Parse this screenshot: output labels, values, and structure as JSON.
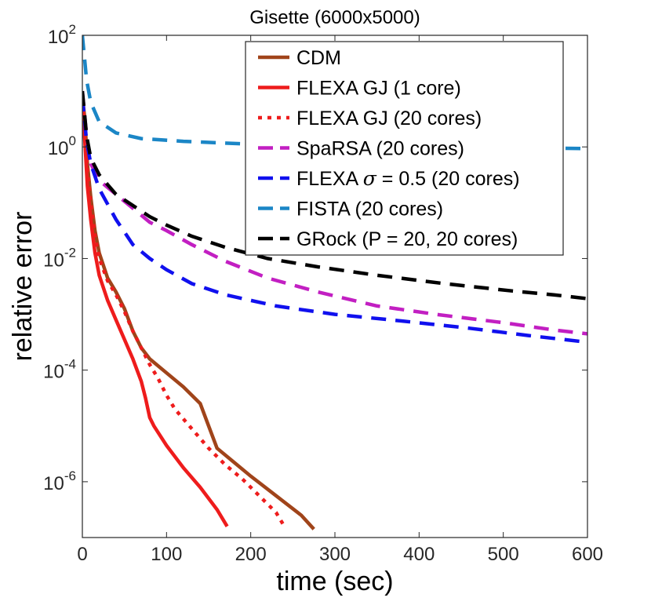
{
  "chart_data": {
    "type": "line",
    "title": "Gisette (6000x5000)",
    "xlabel": "time (sec)",
    "ylabel": "relative error",
    "xlim": [
      0,
      600
    ],
    "ylim_log10": [
      -7,
      2
    ],
    "y_scale": "log",
    "x_ticks": [
      {
        "value": 0,
        "label": "0"
      },
      {
        "value": 100,
        "label": "100"
      },
      {
        "value": 200,
        "label": "200"
      },
      {
        "value": 300,
        "label": "300"
      },
      {
        "value": 400,
        "label": "400"
      },
      {
        "value": 500,
        "label": "500"
      },
      {
        "value": 600,
        "label": "600"
      }
    ],
    "y_ticks": [
      {
        "exp": 2,
        "base": "10",
        "sup": "2"
      },
      {
        "exp": 0,
        "base": "10",
        "sup": "0"
      },
      {
        "exp": -2,
        "base": "10",
        "sup": "-2"
      },
      {
        "exp": -4,
        "base": "10",
        "sup": "-4"
      },
      {
        "exp": -6,
        "base": "10",
        "sup": "-6"
      }
    ],
    "legend_position": "top-right",
    "series": [
      {
        "key": "cdm",
        "name": "CDM",
        "color": "#a0441a",
        "dash": "solid",
        "points": [
          [
            0,
            0.9
          ],
          [
            3,
            0.5
          ],
          [
            6,
            -0.3
          ],
          [
            10,
            -0.9
          ],
          [
            15,
            -1.5
          ],
          [
            20,
            -1.9
          ],
          [
            30,
            -2.35
          ],
          [
            40,
            -2.6
          ],
          [
            50,
            -2.9
          ],
          [
            60,
            -3.3
          ],
          [
            70,
            -3.6
          ],
          [
            80,
            -3.8
          ],
          [
            100,
            -4.05
          ],
          [
            120,
            -4.3
          ],
          [
            140,
            -4.6
          ],
          [
            150,
            -5.0
          ],
          [
            160,
            -5.4
          ],
          [
            180,
            -5.65
          ],
          [
            200,
            -5.9
          ],
          [
            230,
            -6.25
          ],
          [
            260,
            -6.6
          ],
          [
            275,
            -6.85
          ]
        ]
      },
      {
        "key": "flexa_gj_1",
        "name": "FLEXA GJ (1 core)",
        "color": "#ee1c1c",
        "dash": "solid",
        "points": [
          [
            0,
            0.65
          ],
          [
            3,
            0.1
          ],
          [
            6,
            -0.7
          ],
          [
            10,
            -1.3
          ],
          [
            15,
            -1.9
          ],
          [
            20,
            -2.3
          ],
          [
            30,
            -2.75
          ],
          [
            40,
            -3.1
          ],
          [
            50,
            -3.45
          ],
          [
            60,
            -3.8
          ],
          [
            70,
            -4.2
          ],
          [
            75,
            -4.5
          ],
          [
            80,
            -4.85
          ],
          [
            85,
            -5.0
          ],
          [
            100,
            -5.35
          ],
          [
            120,
            -5.75
          ],
          [
            140,
            -6.1
          ],
          [
            160,
            -6.5
          ],
          [
            172,
            -6.8
          ]
        ]
      },
      {
        "key": "flexa_gj_20",
        "name": "FLEXA GJ (20 cores)",
        "color": "#ee1c1c",
        "dash": "dot",
        "points": [
          [
            0,
            0.8
          ],
          [
            3,
            0.3
          ],
          [
            6,
            -0.4
          ],
          [
            10,
            -1.0
          ],
          [
            15,
            -1.6
          ],
          [
            20,
            -2.0
          ],
          [
            30,
            -2.4
          ],
          [
            40,
            -2.65
          ],
          [
            50,
            -2.95
          ],
          [
            60,
            -3.3
          ],
          [
            70,
            -3.6
          ],
          [
            80,
            -3.9
          ],
          [
            90,
            -4.15
          ],
          [
            100,
            -4.45
          ],
          [
            110,
            -4.7
          ],
          [
            130,
            -5.05
          ],
          [
            150,
            -5.4
          ],
          [
            170,
            -5.7
          ],
          [
            190,
            -5.95
          ],
          [
            210,
            -6.25
          ],
          [
            230,
            -6.55
          ],
          [
            240,
            -6.8
          ]
        ]
      },
      {
        "key": "sparsa",
        "name": "SpaRSA (20 cores)",
        "color": "#c21fc2",
        "dash": "dash",
        "points": [
          [
            0,
            1.0
          ],
          [
            5,
            0.2
          ],
          [
            10,
            -0.3
          ],
          [
            20,
            -0.6
          ],
          [
            40,
            -0.85
          ],
          [
            60,
            -1.1
          ],
          [
            80,
            -1.35
          ],
          [
            100,
            -1.5
          ],
          [
            130,
            -1.75
          ],
          [
            170,
            -2.05
          ],
          [
            220,
            -2.35
          ],
          [
            280,
            -2.6
          ],
          [
            350,
            -2.85
          ],
          [
            420,
            -3.0
          ],
          [
            500,
            -3.15
          ],
          [
            560,
            -3.28
          ],
          [
            600,
            -3.35
          ]
        ]
      },
      {
        "key": "flexa_sigma",
        "name": "FLEXA σ = 0.5 (20 cores)",
        "legend_prefix": "FLEXA",
        "legend_symbol": "σ",
        "legend_suffix": "= 0.5 (20 cores)",
        "color": "#1010ee",
        "dash": "dash",
        "points": [
          [
            0,
            0.9
          ],
          [
            5,
            0.1
          ],
          [
            10,
            -0.3
          ],
          [
            20,
            -0.75
          ],
          [
            40,
            -1.3
          ],
          [
            60,
            -1.75
          ],
          [
            80,
            -2.0
          ],
          [
            100,
            -2.2
          ],
          [
            130,
            -2.45
          ],
          [
            170,
            -2.65
          ],
          [
            230,
            -2.85
          ],
          [
            300,
            -3.0
          ],
          [
            380,
            -3.12
          ],
          [
            460,
            -3.25
          ],
          [
            530,
            -3.38
          ],
          [
            600,
            -3.5
          ]
        ]
      },
      {
        "key": "fista",
        "name": "FISTA (20 cores)",
        "color": "#1b86c6",
        "dash": "dash",
        "points": [
          [
            0,
            2.0
          ],
          [
            5,
            1.2
          ],
          [
            10,
            0.8
          ],
          [
            20,
            0.45
          ],
          [
            40,
            0.25
          ],
          [
            70,
            0.15
          ],
          [
            120,
            0.1
          ],
          [
            200,
            0.05
          ],
          [
            300,
            0.03
          ],
          [
            450,
            0.0
          ],
          [
            600,
            -0.03
          ]
        ]
      },
      {
        "key": "grock",
        "name": "GRock (P = 20, 20 cores)",
        "color": "#000000",
        "dash": "dash",
        "points": [
          [
            0,
            1.0
          ],
          [
            5,
            0.2
          ],
          [
            10,
            -0.2
          ],
          [
            20,
            -0.5
          ],
          [
            40,
            -0.85
          ],
          [
            60,
            -1.05
          ],
          [
            80,
            -1.25
          ],
          [
            100,
            -1.4
          ],
          [
            130,
            -1.6
          ],
          [
            170,
            -1.8
          ],
          [
            220,
            -2.0
          ],
          [
            280,
            -2.15
          ],
          [
            350,
            -2.3
          ],
          [
            430,
            -2.45
          ],
          [
            510,
            -2.58
          ],
          [
            560,
            -2.65
          ],
          [
            600,
            -2.72
          ]
        ]
      }
    ]
  }
}
